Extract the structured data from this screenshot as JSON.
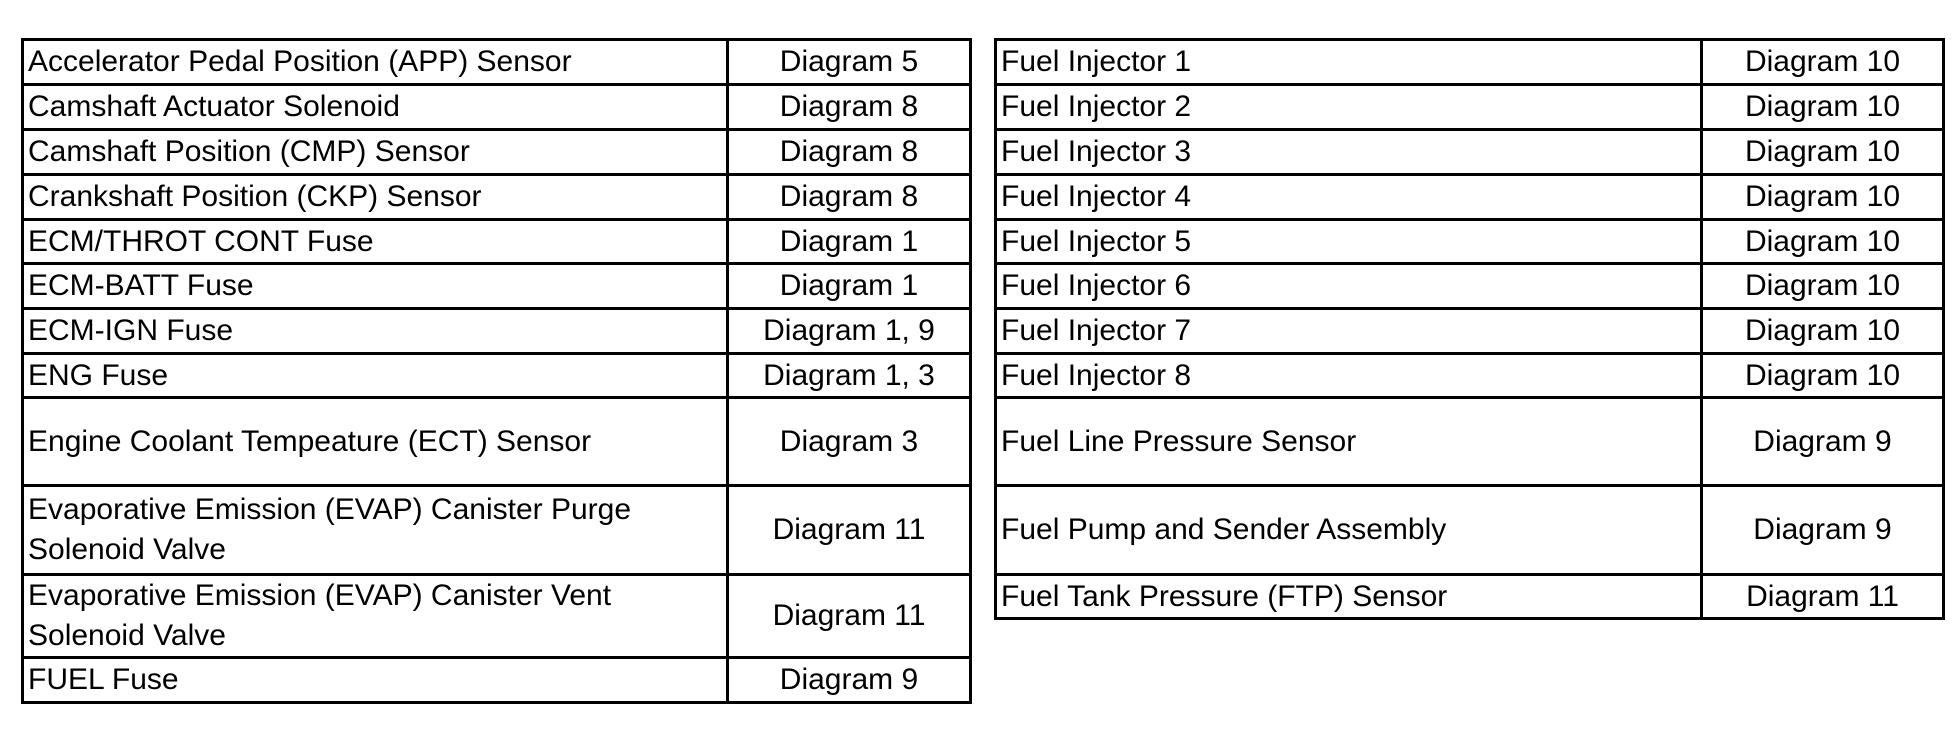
{
  "left_table": {
    "rows": [
      {
        "component": "Accelerator Pedal Position (APP) Sensor",
        "diagram": "Diagram 5"
      },
      {
        "component": "Camshaft Actuator Solenoid",
        "diagram": "Diagram 8"
      },
      {
        "component": "Camshaft Position (CMP) Sensor",
        "diagram": "Diagram 8"
      },
      {
        "component": "Crankshaft Position (CKP) Sensor",
        "diagram": "Diagram 8"
      },
      {
        "component": "ECM/THROT CONT Fuse",
        "diagram": "Diagram 1"
      },
      {
        "component": "ECM-BATT Fuse",
        "diagram": "Diagram 1"
      },
      {
        "component": "ECM-IGN Fuse",
        "diagram": "Diagram 1, 9"
      },
      {
        "component": "ENG Fuse",
        "diagram": "Diagram 1, 3"
      },
      {
        "component": "Engine Coolant Tempeature (ECT) Sensor",
        "diagram": "Diagram 3"
      },
      {
        "component": "Evaporative Emission (EVAP) Canister Purge Solenoid Valve",
        "diagram": "Diagram 11"
      },
      {
        "component": "Evaporative Emission (EVAP) Canister Vent Solenoid Valve",
        "diagram": "Diagram 11"
      },
      {
        "component": "FUEL Fuse",
        "diagram": "Diagram 9"
      }
    ]
  },
  "right_table": {
    "rows": [
      {
        "component": "Fuel Injector 1",
        "diagram": "Diagram 10"
      },
      {
        "component": "Fuel Injector 2",
        "diagram": "Diagram 10"
      },
      {
        "component": "Fuel Injector 3",
        "diagram": "Diagram 10"
      },
      {
        "component": "Fuel Injector 4",
        "diagram": "Diagram 10"
      },
      {
        "component": "Fuel Injector 5",
        "diagram": "Diagram 10"
      },
      {
        "component": "Fuel Injector 6",
        "diagram": "Diagram 10"
      },
      {
        "component": "Fuel Injector 7",
        "diagram": "Diagram 10"
      },
      {
        "component": "Fuel Injector 8",
        "diagram": "Diagram 10"
      },
      {
        "component": "Fuel Line Pressure Sensor",
        "diagram": "Diagram 9"
      },
      {
        "component": "Fuel Pump and Sender Assembly",
        "diagram": "Diagram 9"
      },
      {
        "component": "Fuel Tank Pressure (FTP) Sensor",
        "diagram": "Diagram 11"
      }
    ]
  }
}
